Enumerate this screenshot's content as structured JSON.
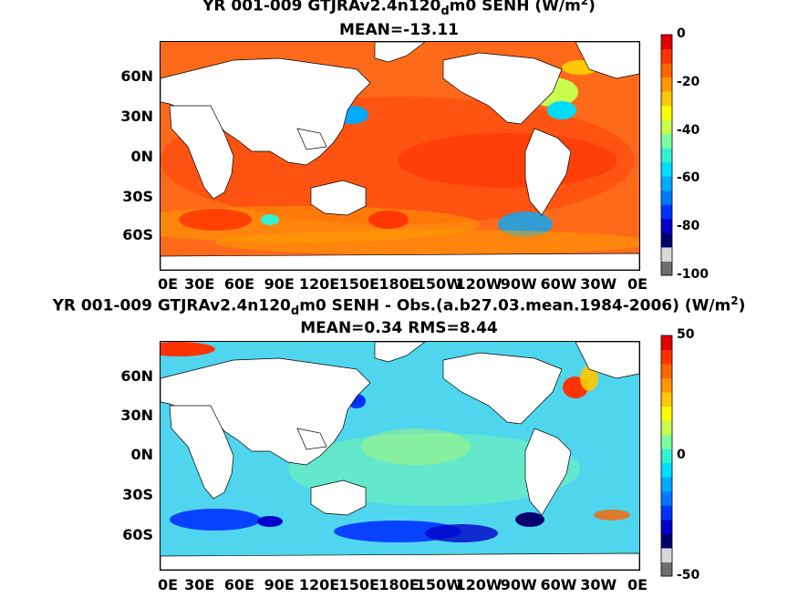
{
  "chart_data": [
    {
      "type": "heatmap",
      "title_main": "YR 001-009 GTJRAv2.4n120",
      "title_sub": "d",
      "title_rest": "m0  SENH (W/m",
      "title_sup": "2",
      "title_end": ")",
      "subtitle": "MEAN=-13.11",
      "y_ticks": [
        "60N",
        "30N",
        "0N",
        "30S",
        "60S"
      ],
      "x_ticks": [
        "0E",
        "30E",
        "60E",
        "90E",
        "120E",
        "150E",
        "180E",
        "150W",
        "120W",
        "90W",
        "60W",
        "30W",
        "0E"
      ],
      "colorbar_ticks": [
        "0",
        "-20",
        "-40",
        "-60",
        "-80",
        "-100"
      ],
      "colorbar_range": [
        -100,
        0
      ],
      "colormap": [
        "#6e6e6e",
        "#d8d8d8",
        "#00006e",
        "#0000c8",
        "#0032ff",
        "#0078ff",
        "#00aaff",
        "#00dcff",
        "#33f0d2",
        "#7dffa0",
        "#c8ff50",
        "#ffff00",
        "#ffc800",
        "#ff9600",
        "#ff6400",
        "#ff3200",
        "#e10000"
      ],
      "field_mean": -13.11
    },
    {
      "type": "heatmap",
      "title_main": "YR 001-009 GTJRAv2.4n120",
      "title_sub": "d",
      "title_rest": "m0 SENH - Obs.(a.b27.03.mean.1984-2006) (W/m",
      "title_sup": "2",
      "title_end": ")",
      "subtitle": "MEAN=0.34 RMS=8.44",
      "y_ticks": [
        "60N",
        "30N",
        "0N",
        "30S",
        "60S"
      ],
      "x_ticks": [
        "0E",
        "30E",
        "60E",
        "90E",
        "120E",
        "150E",
        "180E",
        "150W",
        "120W",
        "90W",
        "60W",
        "30W",
        "0E"
      ],
      "colorbar_ticks": [
        "50",
        "0",
        "-50"
      ],
      "colorbar_range": [
        -50,
        50
      ],
      "colormap": [
        "#6e6e6e",
        "#d8d8d8",
        "#00006e",
        "#0000c8",
        "#0032ff",
        "#0078ff",
        "#00aaff",
        "#00dcff",
        "#33f0d2",
        "#7dffa0",
        "#c8ff50",
        "#ffff00",
        "#ffc800",
        "#ff9600",
        "#ff6400",
        "#ff3200",
        "#e10000"
      ],
      "field_mean": 0.34,
      "field_rms": 8.44
    }
  ]
}
